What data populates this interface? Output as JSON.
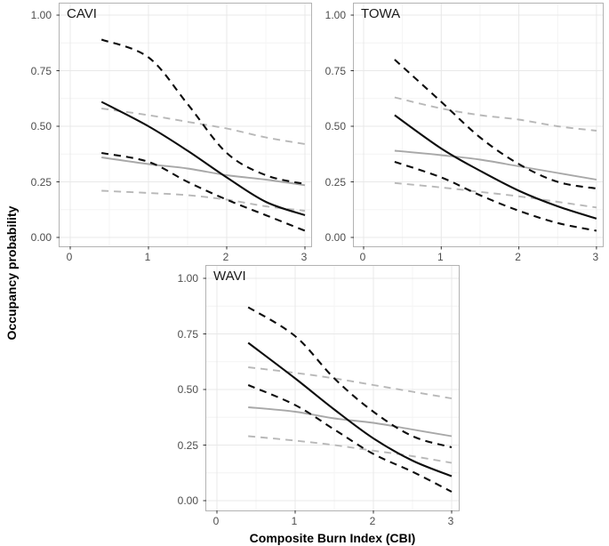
{
  "axes": {
    "x_label": "Composite Burn Index (CBI)",
    "y_label": "Occupancy probability",
    "x_tick_labels": [
      "0",
      "1",
      "2",
      "3"
    ],
    "x_tick_values": [
      0,
      1,
      2,
      3
    ],
    "y_tick_labels": [
      "1.00",
      "0.75",
      "0.50",
      "0.25",
      "0.00"
    ],
    "y_tick_values": [
      1.0,
      0.75,
      0.5,
      0.25,
      0.0
    ],
    "x_minor_values": [
      0.5,
      1.5,
      2.5
    ],
    "y_minor_values": [
      0.125,
      0.375,
      0.625,
      0.875
    ],
    "xlim": [
      0,
      3
    ],
    "ylim": [
      0,
      1
    ]
  },
  "style": {
    "background": "#ffffff",
    "panel_border": "#b3b3b3",
    "grid_major": "#e8e8e8",
    "grid_minor": "#f3f3f3",
    "tick_mark_color": "#333333",
    "tick_label_color": "#4d4d4d",
    "black_line": "#0d0d0d",
    "gray_solid_line": "#a8a8a8",
    "gray_dashed_line": "#b8b8b8"
  },
  "chart_data": [
    {
      "type": "line",
      "title": "CAVI",
      "xlabel": "Composite Burn Index (CBI)",
      "ylabel": "Occupancy probability",
      "xlim": [
        0,
        3
      ],
      "ylim": [
        0,
        1
      ],
      "grid": true,
      "legend": "none",
      "x": [
        0.4,
        1.0,
        1.5,
        2.0,
        2.5,
        3.0
      ],
      "series": [
        {
          "name": "black-mean",
          "color": "#0d0d0d",
          "dash": "solid",
          "width": 2.1,
          "values": [
            0.61,
            0.5,
            0.39,
            0.27,
            0.16,
            0.1
          ]
        },
        {
          "name": "black-upper-ci",
          "color": "#0d0d0d",
          "dash": "dashed",
          "width": 2.1,
          "values": [
            0.89,
            0.81,
            0.6,
            0.38,
            0.28,
            0.24
          ]
        },
        {
          "name": "black-lower-ci",
          "color": "#0d0d0d",
          "dash": "dashed",
          "width": 2.1,
          "values": [
            0.38,
            0.34,
            0.25,
            0.17,
            0.1,
            0.03
          ]
        },
        {
          "name": "gray-mean",
          "color": "#a8a8a8",
          "dash": "solid",
          "width": 1.9,
          "values": [
            0.36,
            0.33,
            0.31,
            0.28,
            0.26,
            0.235
          ]
        },
        {
          "name": "gray-upper-ci",
          "color": "#b8b8b8",
          "dash": "dashed",
          "width": 1.9,
          "values": [
            0.58,
            0.55,
            0.52,
            0.49,
            0.45,
            0.42
          ]
        },
        {
          "name": "gray-lower-ci",
          "color": "#b8b8b8",
          "dash": "dashed",
          "width": 1.9,
          "values": [
            0.21,
            0.2,
            0.19,
            0.17,
            0.14,
            0.12
          ]
        }
      ]
    },
    {
      "type": "line",
      "title": "TOWA",
      "xlabel": "Composite Burn Index (CBI)",
      "ylabel": "Occupancy probability",
      "xlim": [
        0,
        3
      ],
      "ylim": [
        0,
        1
      ],
      "grid": true,
      "legend": "none",
      "x": [
        0.4,
        1.0,
        1.5,
        2.0,
        2.5,
        3.0
      ],
      "series": [
        {
          "name": "black-mean",
          "color": "#0d0d0d",
          "dash": "solid",
          "width": 2.1,
          "values": [
            0.55,
            0.4,
            0.3,
            0.21,
            0.14,
            0.085
          ]
        },
        {
          "name": "black-upper-ci",
          "color": "#0d0d0d",
          "dash": "dashed",
          "width": 2.1,
          "values": [
            0.8,
            0.61,
            0.45,
            0.33,
            0.25,
            0.22
          ]
        },
        {
          "name": "black-lower-ci",
          "color": "#0d0d0d",
          "dash": "dashed",
          "width": 2.1,
          "values": [
            0.34,
            0.27,
            0.19,
            0.12,
            0.065,
            0.03
          ]
        },
        {
          "name": "gray-mean",
          "color": "#a8a8a8",
          "dash": "solid",
          "width": 1.9,
          "values": [
            0.39,
            0.37,
            0.35,
            0.32,
            0.29,
            0.26
          ]
        },
        {
          "name": "gray-upper-ci",
          "color": "#b8b8b8",
          "dash": "dashed",
          "width": 1.9,
          "values": [
            0.63,
            0.58,
            0.55,
            0.53,
            0.5,
            0.48
          ]
        },
        {
          "name": "gray-lower-ci",
          "color": "#b8b8b8",
          "dash": "dashed",
          "width": 1.9,
          "values": [
            0.245,
            0.225,
            0.205,
            0.185,
            0.16,
            0.135
          ]
        }
      ]
    },
    {
      "type": "line",
      "title": "WAVI",
      "xlabel": "Composite Burn Index (CBI)",
      "ylabel": "Occupancy probability",
      "xlim": [
        0,
        3
      ],
      "ylim": [
        0,
        1
      ],
      "grid": true,
      "legend": "none",
      "x": [
        0.4,
        1.0,
        1.5,
        2.0,
        2.5,
        3.0
      ],
      "series": [
        {
          "name": "black-mean",
          "color": "#0d0d0d",
          "dash": "solid",
          "width": 2.1,
          "values": [
            0.71,
            0.55,
            0.41,
            0.28,
            0.18,
            0.11
          ]
        },
        {
          "name": "black-upper-ci",
          "color": "#0d0d0d",
          "dash": "dashed",
          "width": 2.1,
          "values": [
            0.87,
            0.74,
            0.55,
            0.4,
            0.29,
            0.24
          ]
        },
        {
          "name": "black-lower-ci",
          "color": "#0d0d0d",
          "dash": "dashed",
          "width": 2.1,
          "values": [
            0.52,
            0.43,
            0.32,
            0.21,
            0.13,
            0.04
          ]
        },
        {
          "name": "gray-mean",
          "color": "#a8a8a8",
          "dash": "solid",
          "width": 1.9,
          "values": [
            0.42,
            0.4,
            0.37,
            0.35,
            0.32,
            0.29
          ]
        },
        {
          "name": "gray-upper-ci",
          "color": "#b8b8b8",
          "dash": "dashed",
          "width": 1.9,
          "values": [
            0.6,
            0.575,
            0.55,
            0.52,
            0.49,
            0.46
          ]
        },
        {
          "name": "gray-lower-ci",
          "color": "#b8b8b8",
          "dash": "dashed",
          "width": 1.9,
          "values": [
            0.29,
            0.27,
            0.25,
            0.225,
            0.2,
            0.17
          ]
        }
      ]
    }
  ]
}
